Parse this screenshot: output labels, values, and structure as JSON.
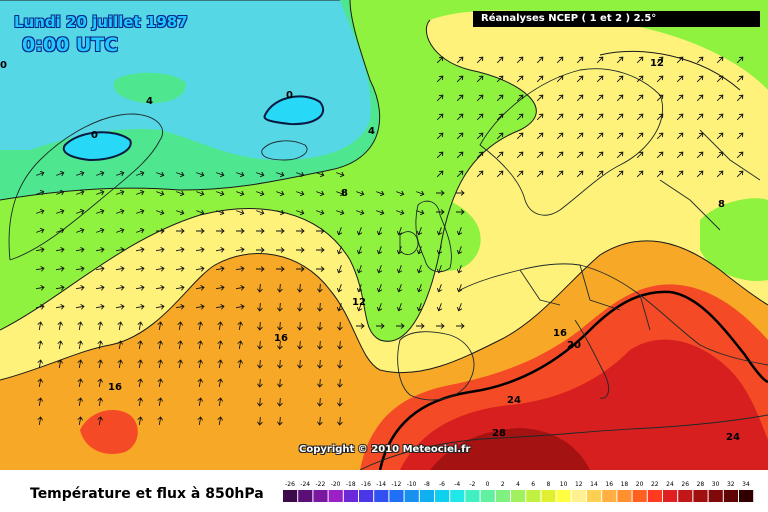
{
  "header": {
    "date": "Lundi 20 juillet 1987",
    "time": "0:00 UTC",
    "source": "Réanalyses NCEP ( 1 et 2 ) 2.5°"
  },
  "footer": {
    "title": "Température et flux à 850hPa",
    "copyright": "Copyright © 2010 Meteociel.fr"
  },
  "legend": {
    "ticks": [
      "-26",
      "-24",
      "-22",
      "-20",
      "-18",
      "-16",
      "-14",
      "-12",
      "-10",
      "-8",
      "-6",
      "-4",
      "-2",
      "0",
      "2",
      "4",
      "6",
      "8",
      "10",
      "12",
      "14",
      "16",
      "18",
      "20",
      "22",
      "24",
      "26",
      "28",
      "30",
      "32",
      "34"
    ],
    "colors": [
      "#3d0a4c",
      "#5a1076",
      "#7b18a0",
      "#9a20c8",
      "#6a28d8",
      "#4a38e8",
      "#3050f0",
      "#2070f5",
      "#1890f0",
      "#10b0f0",
      "#10d0f0",
      "#20e8e8",
      "#40f0c0",
      "#60f0a0",
      "#80f080",
      "#a0f060",
      "#c0f040",
      "#e0f030",
      "#ffff40",
      "#fff090",
      "#ffd050",
      "#ffb040",
      "#ff9030",
      "#ff6020",
      "#ff3a20",
      "#e02020",
      "#c01818",
      "#a01010",
      "#800808",
      "#600404",
      "#300000"
    ]
  },
  "isotherm_labels": [
    "0",
    "0",
    "4",
    "0",
    "4",
    "8",
    "8",
    "12",
    "12",
    "16",
    "16",
    "16",
    "20",
    "24",
    "24",
    "28"
  ],
  "colors": {
    "band_4_8": "#4ee68f",
    "band_8_12": "#8ef23e",
    "band_12_16": "#fff27a",
    "band_16_20": "#f7a826",
    "band_20_24": "#f44a26",
    "band_24_28": "#d71f1f",
    "band_28_plus": "#a51212",
    "cold_0_4": "#56d7e6",
    "cold_below_0": "#27d9f6",
    "contour_20": "#000000",
    "title_blue": "#23c8ff"
  }
}
